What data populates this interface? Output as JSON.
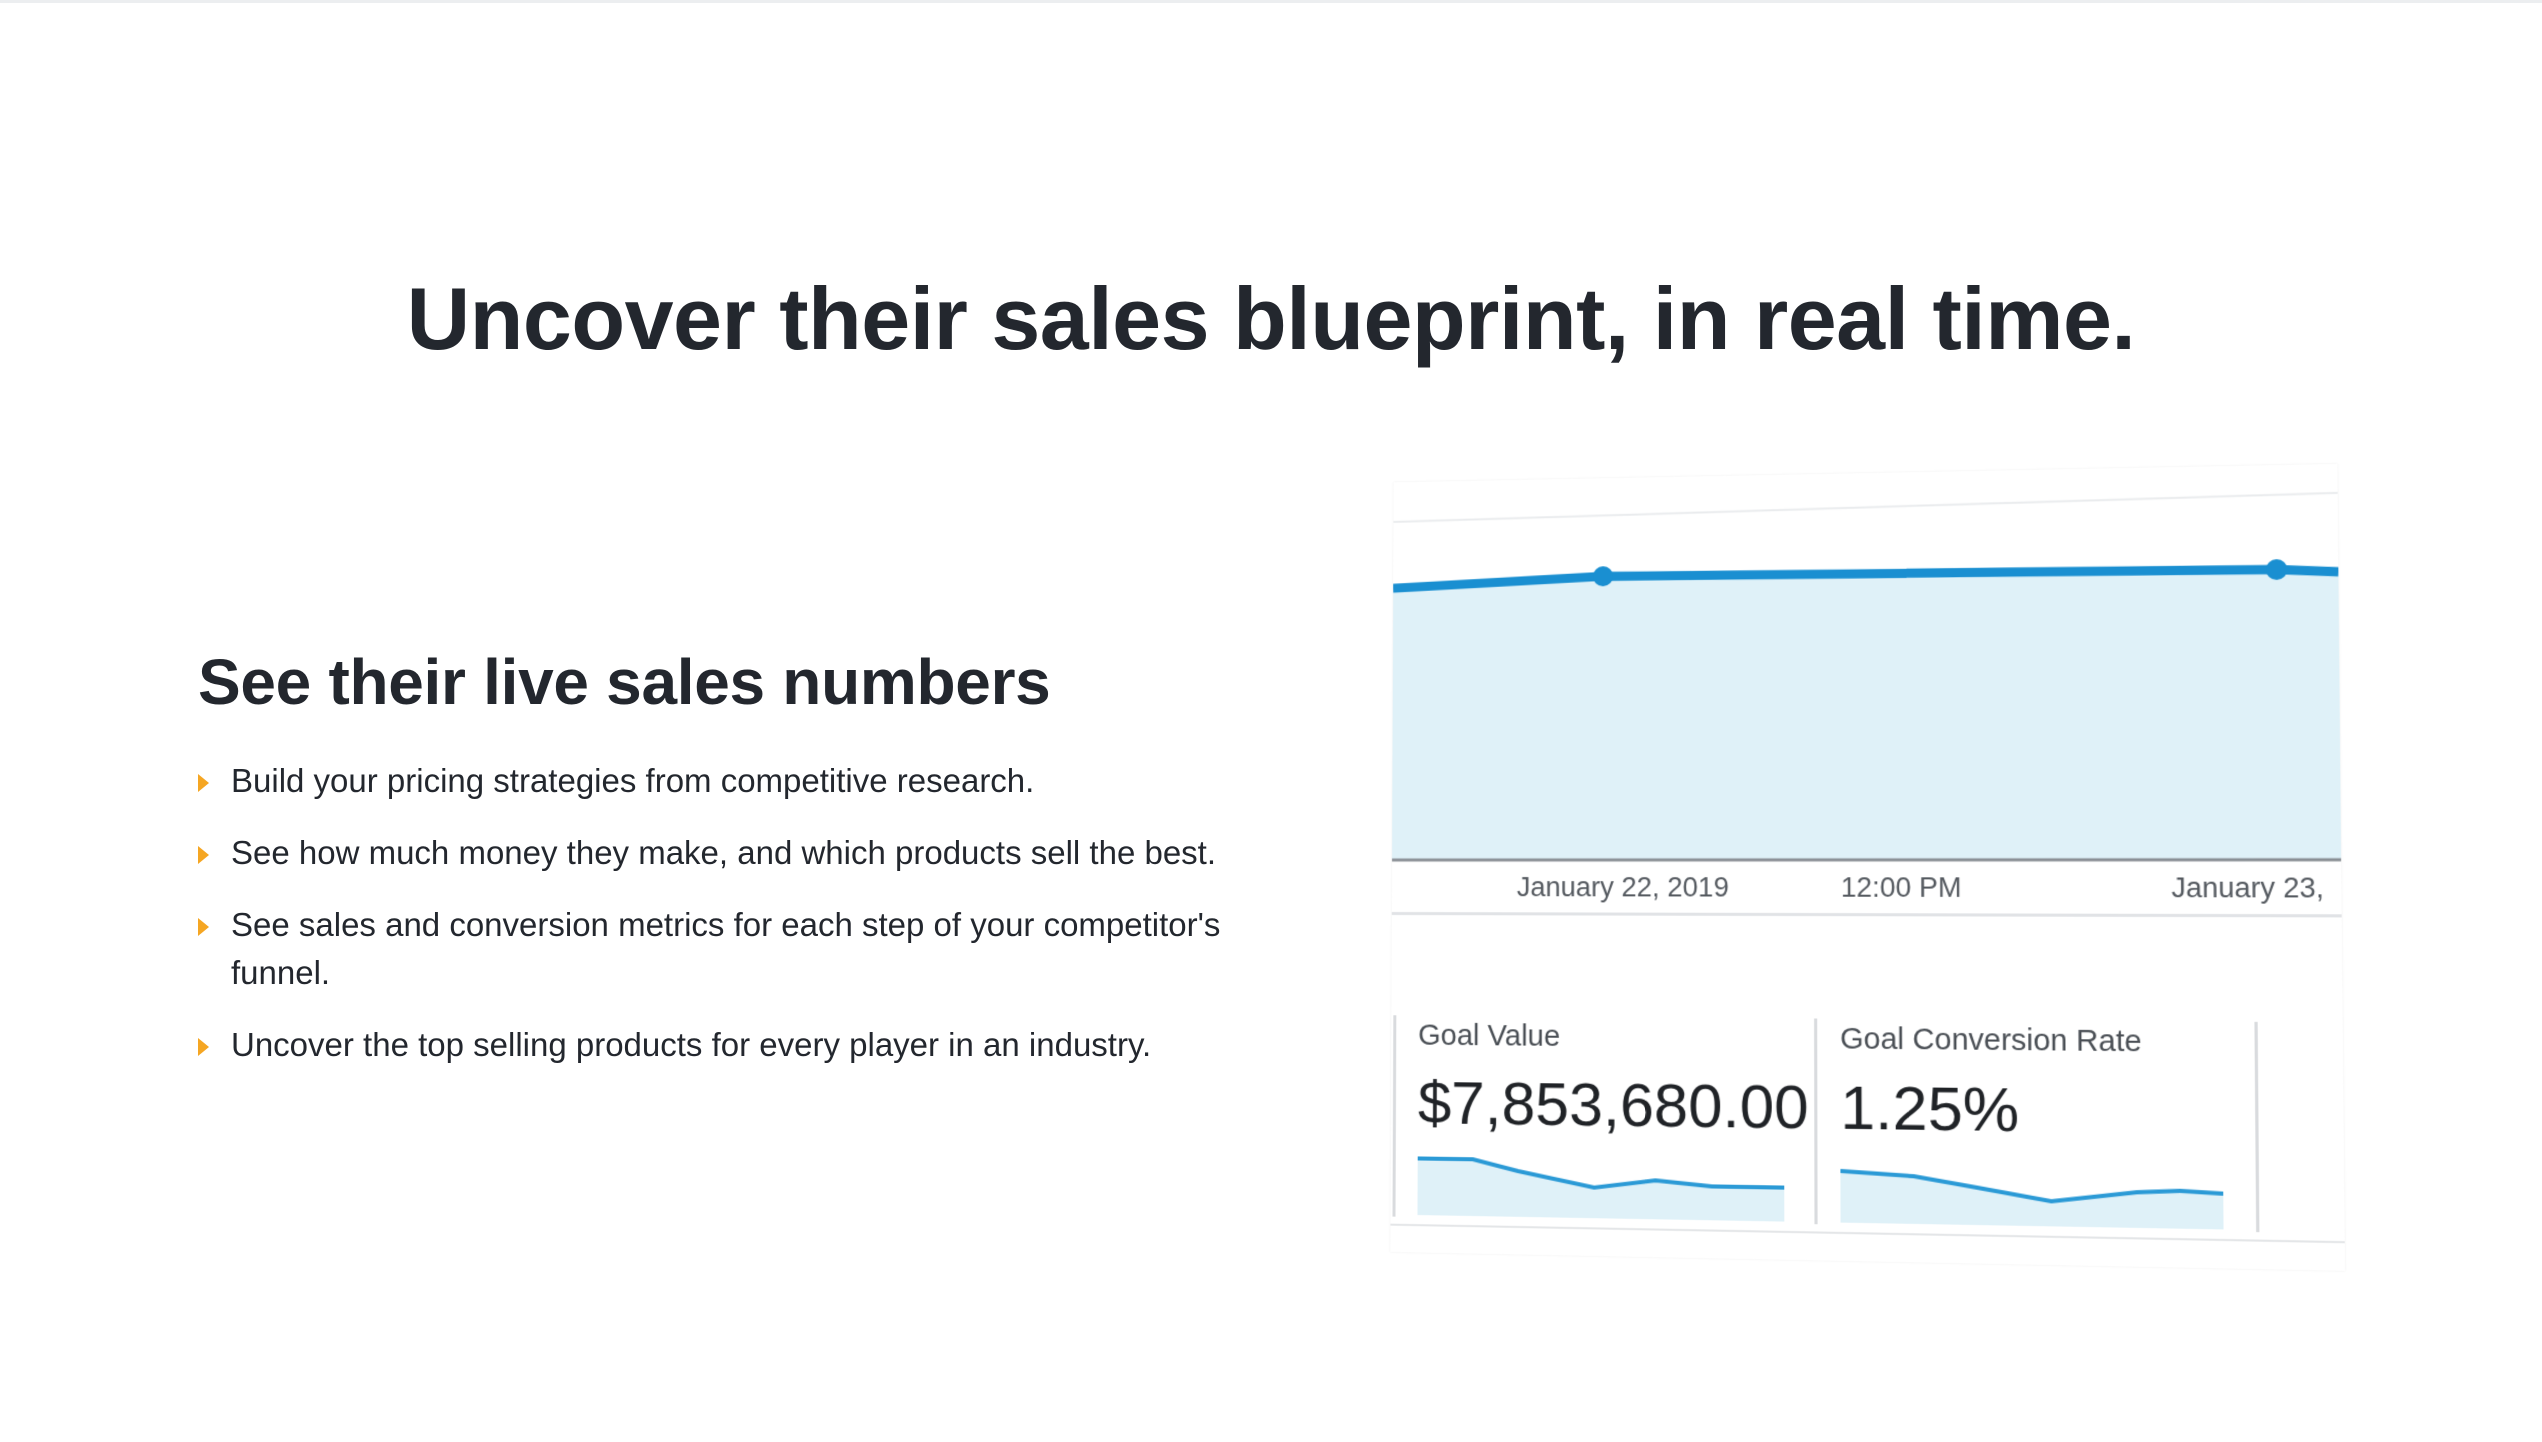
{
  "headline": "Uncover their sales blueprint, in real time.",
  "feature": {
    "title": "See their live sales numbers",
    "bullets": [
      "Build your pricing strategies from competitive research.",
      "See how much money they make, and which products sell the best.",
      "See sales and conversion metrics for each step of your competitor's funnel.",
      "Uncover the top selling products for every player in an industry."
    ]
  },
  "dashboard": {
    "chart": {
      "x_labels": [
        "January 22, 2019",
        "12:00 PM",
        "January 23,"
      ],
      "line_color": "#1a8fd1",
      "fill_color": "#dff1f8"
    },
    "tiles": [
      {
        "label": "Goal Value",
        "value": "$7,853,680.00"
      },
      {
        "label": "Goal Conversion Rate",
        "value": "1.25%"
      }
    ]
  },
  "colors": {
    "accent": "#f5a623",
    "text": "#23272e"
  }
}
